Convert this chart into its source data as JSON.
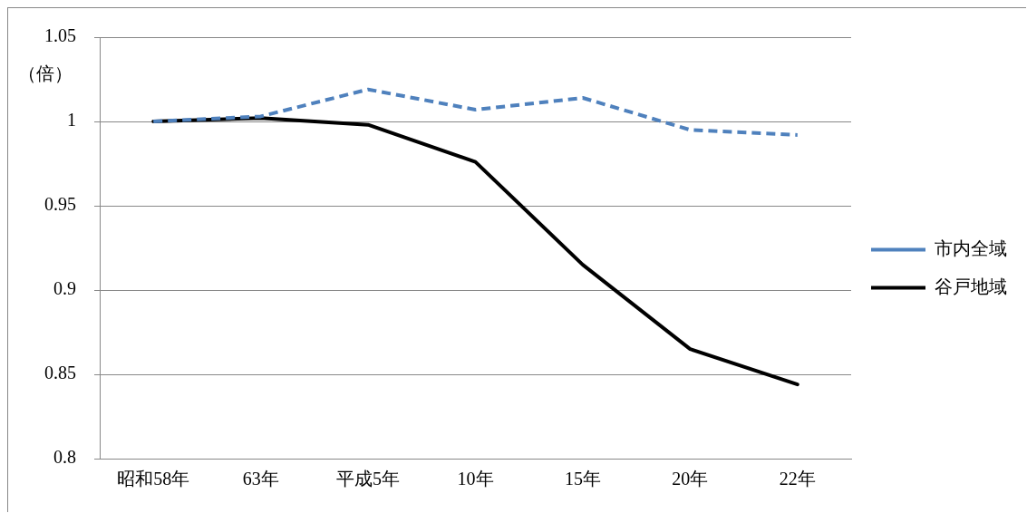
{
  "chart_data": {
    "type": "line",
    "ylabel": "（倍）",
    "categories": [
      "昭和58年",
      "63年",
      "平成5年",
      "10年",
      "15年",
      "20年",
      "22年"
    ],
    "series": [
      {
        "name": "市内全域",
        "color": "#4f81bd",
        "line_style": "dashed",
        "values": [
          1.0,
          1.003,
          1.019,
          1.007,
          1.014,
          0.995,
          0.992
        ]
      },
      {
        "name": "谷戸地域",
        "color": "#000000",
        "line_style": "solid",
        "values": [
          1.0,
          1.002,
          0.998,
          0.976,
          0.915,
          0.865,
          0.844
        ]
      }
    ],
    "ylim": [
      0.8,
      1.05
    ],
    "yticks": [
      {
        "value": 0.8,
        "label": "0.8"
      },
      {
        "value": 0.85,
        "label": "0.85"
      },
      {
        "value": 0.9,
        "label": "0.9"
      },
      {
        "value": 0.95,
        "label": "0.95"
      },
      {
        "value": 1,
        "label": "1"
      },
      {
        "value": 1.05,
        "label": "1.05"
      }
    ],
    "grid": "y",
    "legend": "right",
    "marker": "none"
  }
}
